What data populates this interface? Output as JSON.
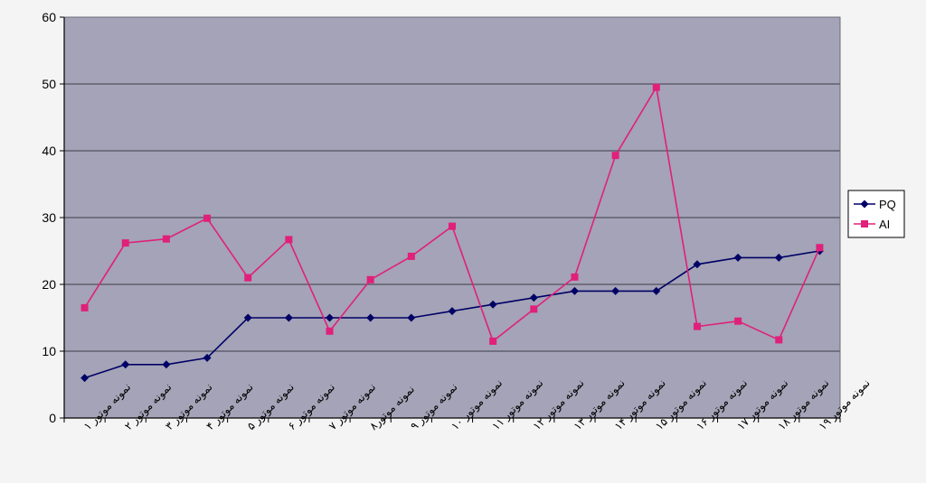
{
  "chart_data": {
    "type": "line",
    "title": "",
    "xlabel": "",
    "ylabel": "",
    "ylim": [
      0,
      60
    ],
    "yticks": [
      0,
      10,
      20,
      30,
      40,
      50,
      60
    ],
    "grid": true,
    "legend_position": "right",
    "categories": [
      "نمونه موتور ۱",
      "نمونه موتور ۲",
      "نمونه موتور ۳",
      "نمونه موتور ۴",
      "نمونه موتور ۵",
      "نمونه موتور ۶",
      "نمونه موتور ۷",
      "نمونه موتور۸",
      "نمونه موتور ۹",
      "نمونه موتور ۱۰",
      "نمونه موتور ۱۱",
      "نمونه موتور ۱۲",
      "نمونه موتور ۱۳",
      "نمونه موتور ۱۴",
      "نمونه موتور ۱۵",
      "نمونه موتور ۱۶",
      "نمونه موتور ۱۷",
      "نمونه موتور ۱۸",
      "نمونه موتور ۱۹"
    ],
    "series": [
      {
        "name": "PQ",
        "color": "#000066",
        "marker": "diamond",
        "values": [
          6,
          8,
          8,
          9,
          15,
          15,
          15,
          15,
          15,
          16,
          17,
          18,
          19,
          19,
          19,
          23,
          24,
          24,
          25
        ]
      },
      {
        "name": "AI",
        "color": "#e0207a",
        "marker": "square",
        "values": [
          16.5,
          26.2,
          26.8,
          29.9,
          21,
          26.7,
          13,
          20.7,
          24.2,
          28.7,
          11.5,
          16.3,
          21.1,
          39.3,
          49.5,
          13.7,
          14.5,
          11.7,
          25.5
        ]
      }
    ]
  },
  "colors": {
    "plot_background": "#a4a3b7",
    "gridline": "#3c3c4a",
    "axis": "#000000",
    "page_background": "#f4f4f4"
  }
}
